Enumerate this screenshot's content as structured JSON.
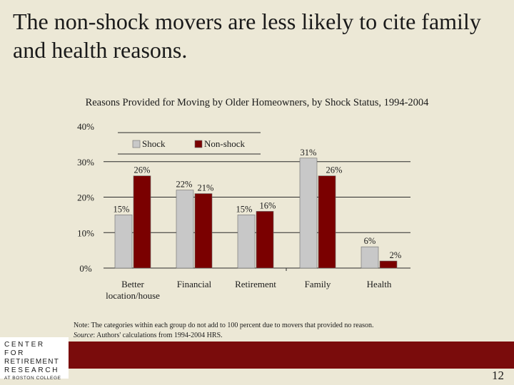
{
  "slide": {
    "title": "The non-shock movers are less likely to cite family and health reasons.",
    "page_number": "12"
  },
  "chart_data": {
    "type": "bar",
    "title": "Reasons Provided for Moving by Older Homeowners, by Shock Status, 1994-2004",
    "categories": [
      "Better location/house",
      "Financial",
      "Retirement",
      "Family",
      "Health"
    ],
    "category_lines": [
      [
        "Better",
        "location/house"
      ],
      [
        "Financial"
      ],
      [
        "Retirement"
      ],
      [
        "Family"
      ],
      [
        "Health"
      ]
    ],
    "series": [
      {
        "name": "Shock",
        "values": [
          15,
          22,
          15,
          31,
          6
        ],
        "labels": [
          "15%",
          "22%",
          "15%",
          "31%",
          "6%"
        ],
        "color": "#c8c8c8"
      },
      {
        "name": "Non-shock",
        "values": [
          26,
          21,
          16,
          26,
          2
        ],
        "labels": [
          "26%",
          "21%",
          "16%",
          "26%",
          "2%"
        ],
        "color": "#7a0000"
      }
    ],
    "y_ticks": [
      "0%",
      "10%",
      "20%",
      "30%",
      "40%"
    ],
    "ylim": [
      0,
      40
    ],
    "grid": true,
    "legend_position": "top-left"
  },
  "note": {
    "text": "Note: The categories within each group do not add to 100 percent due to movers that provided no reason.",
    "source_label": "Source",
    "source_text": ": Authors' calculations from 1994-2004 HRS."
  },
  "logo": {
    "line1": "CENTER FOR",
    "line2": "RETIREMENT",
    "line3": "RESEARCH",
    "line4": "AT BOSTON COLLEGE"
  }
}
